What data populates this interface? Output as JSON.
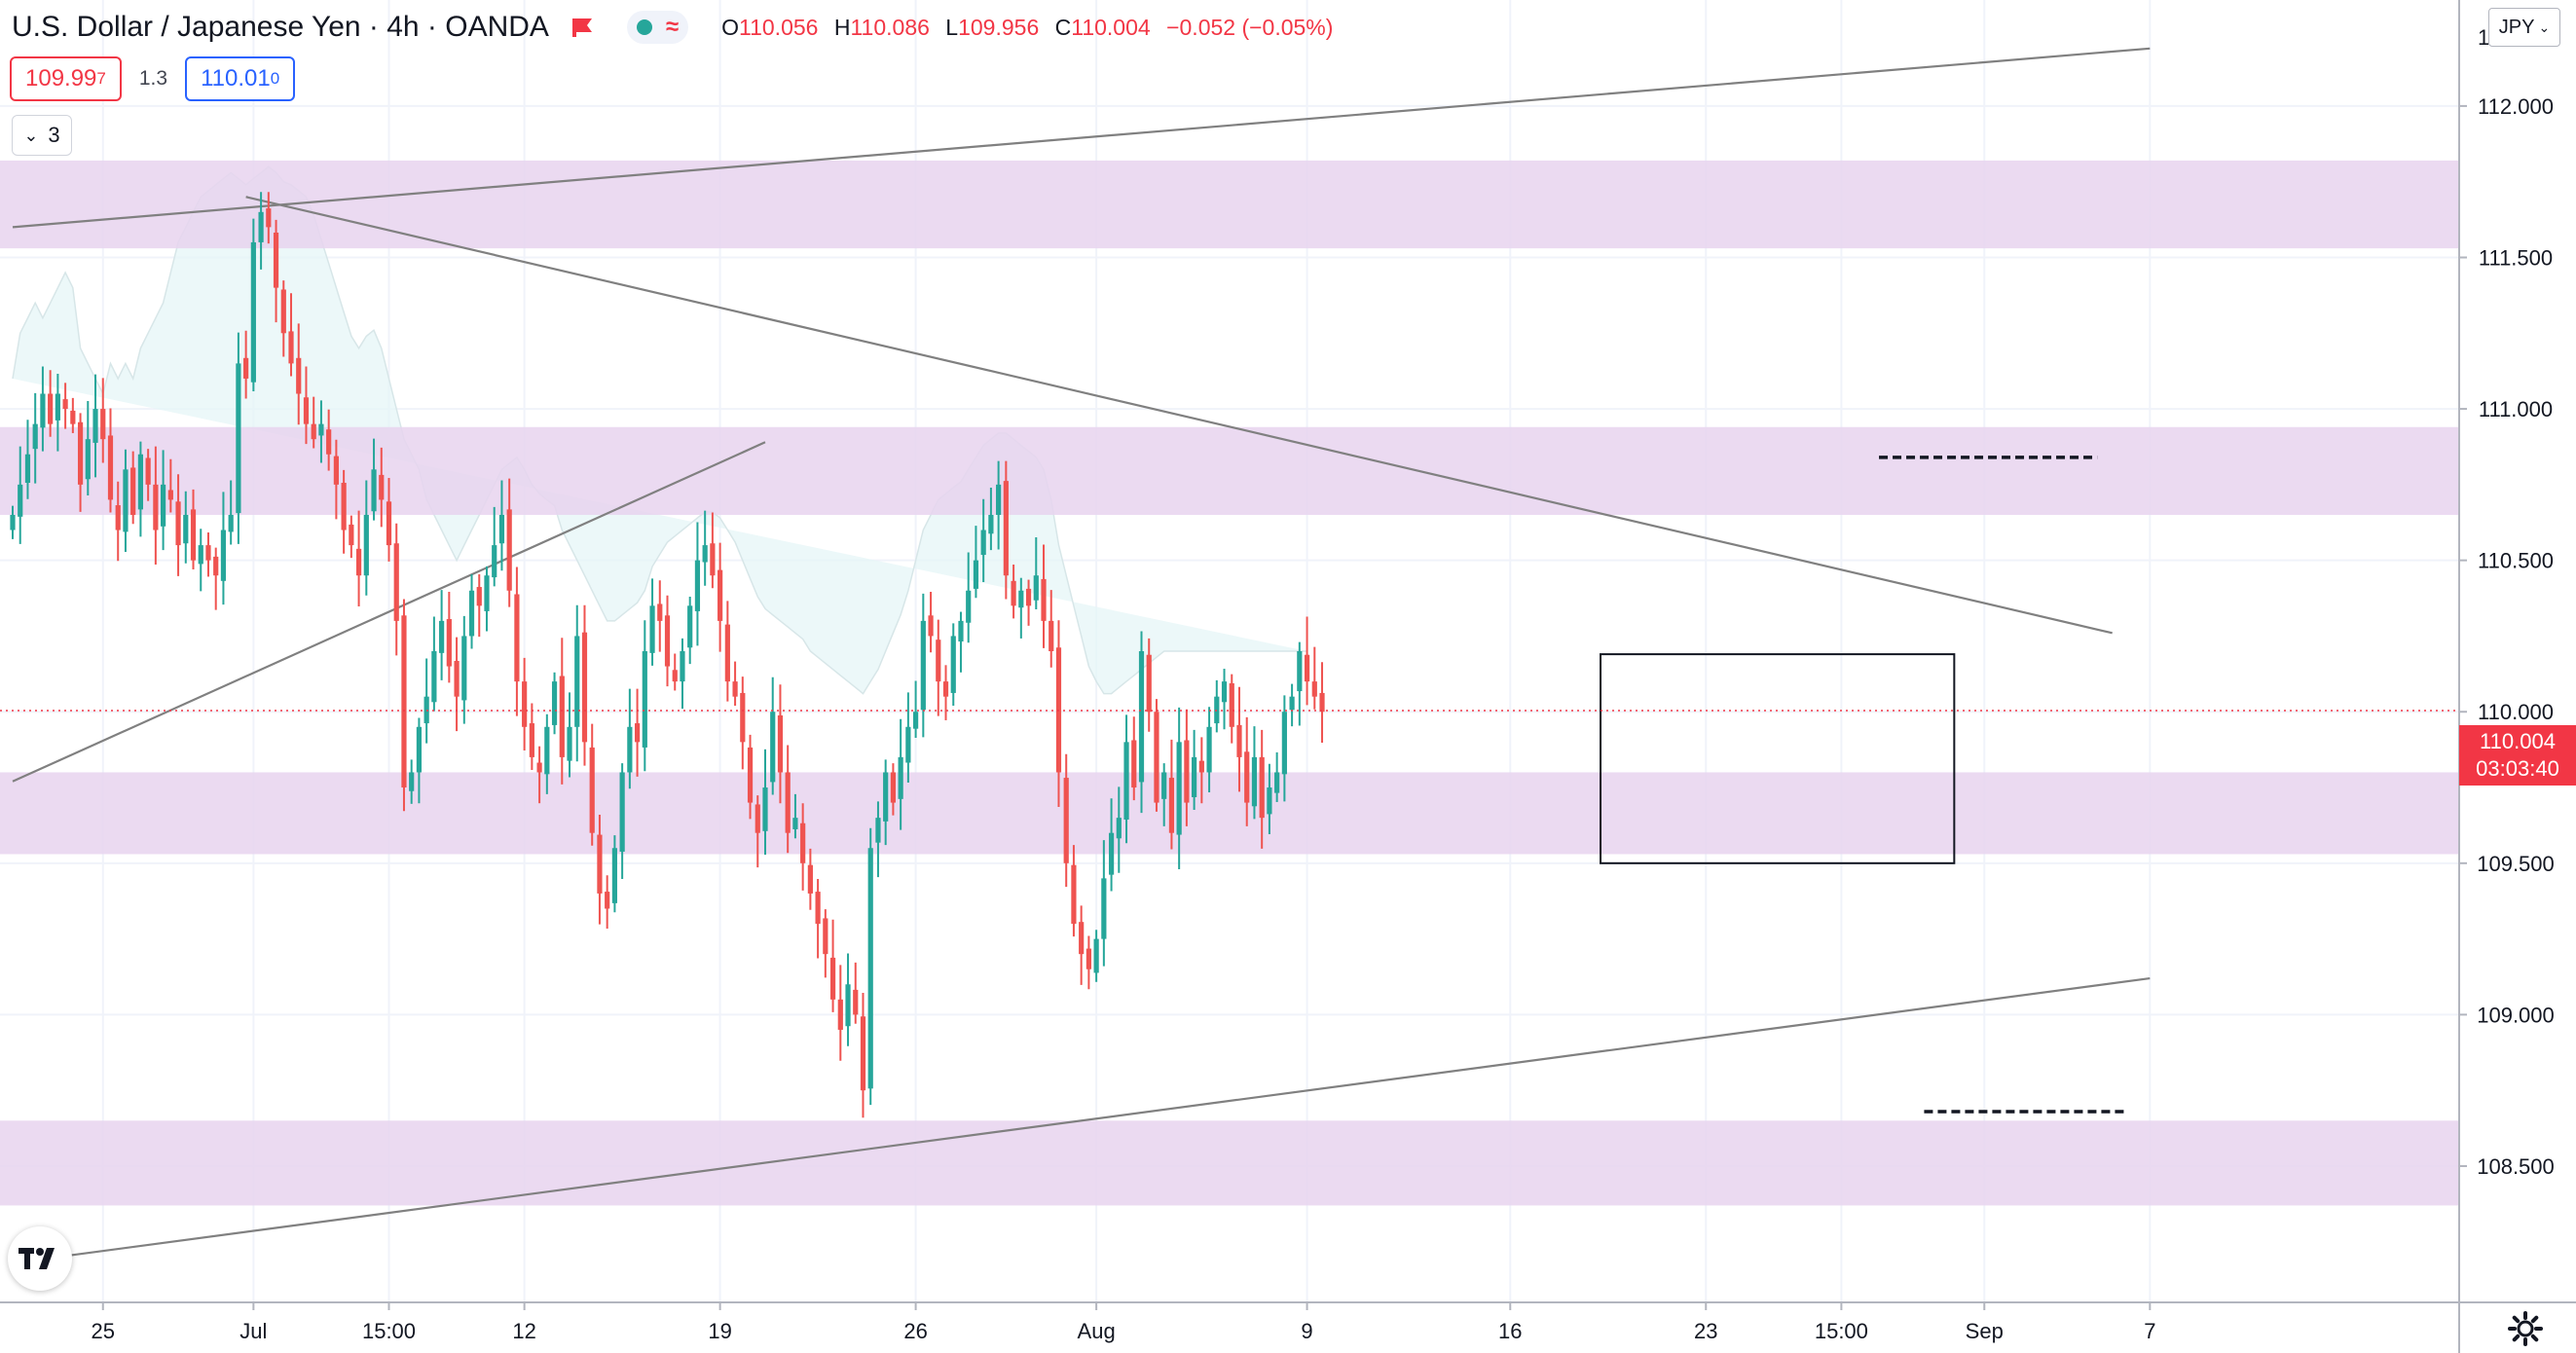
{
  "header": {
    "title": "U.S. Dollar / Japanese Yen · 4h · OANDA",
    "ohlc": {
      "o_label": "O",
      "o": "110.056",
      "h_label": "H",
      "h": "110.086",
      "l_label": "L",
      "l": "109.956",
      "c_label": "C",
      "c": "110.004",
      "change": "−0.052 (−0.05%)"
    }
  },
  "trade": {
    "sell": "109.99",
    "sell_sup": "7",
    "spread": "1.3",
    "buy": "110.01",
    "buy_sup": "0"
  },
  "indicators_toggle": {
    "count": "3"
  },
  "currency": "JPY",
  "last_price": {
    "value": "110.004",
    "countdown": "03:03:40"
  },
  "colors": {
    "up": "#26a69a",
    "down": "#ef5350",
    "zone": "#e8d4ef",
    "band": "#e6f6f7",
    "line": "#808080"
  },
  "chart_data": {
    "type": "candlestick",
    "symbol": "USDJPY",
    "timeframe": "4h",
    "ylim": [
      108.05,
      112.35
    ],
    "y_ticks": [
      112.0,
      111.5,
      111.0,
      110.5,
      110.0,
      109.5,
      109.0,
      108.5
    ],
    "y_tick_labels": [
      "112.000",
      "111.500",
      "111.000",
      "110.500",
      "110.000",
      "109.500",
      "109.000",
      "108.500"
    ],
    "x_ticks": [
      {
        "label": "25",
        "index": 12
      },
      {
        "label": "Jul",
        "index": 32
      },
      {
        "label": "15:00",
        "index": 50
      },
      {
        "label": "12",
        "index": 68
      },
      {
        "label": "19",
        "index": 94
      },
      {
        "label": "26",
        "index": 120
      },
      {
        "label": "Aug",
        "index": 144
      },
      {
        "label": "9",
        "index": 172
      },
      {
        "label": "16",
        "index": 199
      },
      {
        "label": "23",
        "index": 225
      },
      {
        "label": "15:00",
        "index": 243
      },
      {
        "label": "Sep",
        "index": 262
      },
      {
        "label": "7",
        "index": 284
      }
    ],
    "zones": [
      {
        "low": 111.53,
        "high": 111.82
      },
      {
        "low": 110.65,
        "high": 110.94
      },
      {
        "low": 109.53,
        "high": 109.8
      },
      {
        "low": 108.37,
        "high": 108.65
      }
    ],
    "trendlines": [
      {
        "i1": 0,
        "p1": 111.6,
        "i2": 284,
        "p2": 112.19
      },
      {
        "i1": 31,
        "p1": 111.7,
        "i2": 279,
        "p2": 110.26
      },
      {
        "i1": 0,
        "p1": 109.77,
        "i2": 100,
        "p2": 110.89
      },
      {
        "i1": 6,
        "p1": 108.2,
        "i2": 284,
        "p2": 109.12
      }
    ],
    "dashed_levels": [
      {
        "i1": 248,
        "i2": 277,
        "price": 110.84
      },
      {
        "i1": 254,
        "i2": 281,
        "price": 108.68
      }
    ],
    "range_box": {
      "i1": 211,
      "i2": 258,
      "high": 110.19,
      "low": 109.5
    },
    "closes": [
      110.65,
      110.75,
      110.85,
      110.95,
      111.05,
      110.95,
      111.05,
      111.0,
      110.95,
      110.75,
      110.9,
      111.0,
      110.9,
      110.7,
      110.6,
      110.8,
      110.65,
      110.85,
      110.75,
      110.6,
      110.75,
      110.7,
      110.55,
      110.65,
      110.5,
      110.55,
      110.5,
      110.45,
      110.6,
      110.65,
      111.15,
      111.1,
      111.55,
      111.65,
      111.6,
      111.4,
      111.25,
      111.15,
      111.05,
      110.95,
      110.9,
      110.95,
      110.85,
      110.75,
      110.6,
      110.55,
      110.45,
      110.65,
      110.8,
      110.7,
      110.55,
      110.3,
      109.75,
      109.8,
      109.95,
      110.05,
      110.2,
      110.3,
      110.15,
      110.05,
      110.25,
      110.4,
      110.35,
      110.45,
      110.55,
      110.65,
      110.4,
      110.1,
      109.95,
      109.85,
      109.8,
      109.95,
      110.1,
      109.85,
      109.95,
      110.25,
      109.9,
      109.6,
      109.4,
      109.35,
      109.55,
      109.8,
      109.95,
      109.9,
      110.2,
      110.35,
      110.3,
      110.15,
      110.1,
      110.2,
      110.35,
      110.5,
      110.55,
      110.45,
      110.3,
      110.1,
      110.05,
      109.9,
      109.7,
      109.6,
      109.75,
      110.0,
      109.8,
      109.6,
      109.65,
      109.5,
      109.4,
      109.3,
      109.2,
      109.05,
      108.95,
      109.1,
      109.0,
      108.75,
      109.55,
      109.65,
      109.8,
      109.7,
      109.85,
      109.95,
      110.0,
      110.3,
      110.25,
      110.1,
      110.05,
      110.25,
      110.3,
      110.4,
      110.5,
      110.6,
      110.65,
      110.75,
      110.45,
      110.35,
      110.4,
      110.35,
      110.45,
      110.3,
      110.2,
      109.8,
      109.5,
      109.3,
      109.2,
      109.15,
      109.25,
      109.45,
      109.6,
      109.65,
      109.9,
      109.75,
      110.2,
      110.0,
      109.7,
      109.8,
      109.6,
      109.9,
      109.7,
      109.85,
      109.8,
      109.95,
      110.05,
      110.1,
      109.95,
      109.85,
      109.7,
      109.85,
      109.65,
      109.75,
      109.8,
      110.0,
      110.05,
      110.2,
      110.1,
      110.05,
      110.0
    ],
    "band_upper": [
      111.1,
      111.25,
      111.3,
      111.35,
      111.3,
      111.35,
      111.4,
      111.45,
      111.4,
      111.2,
      111.15,
      111.1,
      111.05,
      111.15,
      111.1,
      111.15,
      111.1,
      111.2,
      111.25,
      111.3,
      111.35,
      111.45,
      111.55,
      111.6,
      111.65,
      111.7,
      111.72,
      111.74,
      111.76,
      111.78,
      111.76,
      111.74,
      111.76,
      111.78,
      111.8,
      111.78,
      111.75,
      111.74,
      111.72,
      111.7,
      111.64,
      111.56,
      111.48,
      111.4,
      111.32,
      111.24,
      111.2,
      111.24,
      111.26,
      111.2,
      111.1,
      111.0,
      110.9,
      110.85,
      110.8,
      110.7,
      110.65,
      110.6,
      110.55,
      110.5,
      110.55,
      110.6,
      110.65,
      110.7,
      110.75,
      110.8,
      110.82,
      110.84,
      110.8,
      110.75,
      110.72,
      110.7,
      110.68,
      110.6,
      110.55,
      110.5,
      110.45,
      110.4,
      110.35,
      110.3,
      110.3,
      110.32,
      110.34,
      110.36,
      110.4,
      110.48,
      110.52,
      110.56,
      110.58,
      110.6,
      110.62,
      110.64,
      110.66,
      110.66,
      110.64,
      110.6,
      110.56,
      110.5,
      110.44,
      110.38,
      110.34,
      110.32,
      110.3,
      110.28,
      110.26,
      110.24,
      110.2,
      110.18,
      110.16,
      110.14,
      110.12,
      110.1,
      110.08,
      110.06,
      110.1,
      110.14,
      110.2,
      110.26,
      110.32,
      110.4,
      110.5,
      110.6,
      110.65,
      110.7,
      110.72,
      110.74,
      110.76,
      110.8,
      110.84,
      110.88,
      110.9,
      110.92,
      110.92,
      110.9,
      110.88,
      110.86,
      110.84,
      110.8,
      110.7,
      110.55,
      110.45,
      110.35,
      110.25,
      110.15,
      110.1,
      110.06,
      110.06,
      110.08,
      110.1,
      110.12,
      110.14,
      110.16,
      110.18,
      110.2,
      110.2,
      110.2,
      110.2,
      110.2,
      110.2,
      110.2,
      110.2,
      110.2,
      110.2,
      110.2,
      110.2,
      110.2,
      110.2,
      110.2,
      110.2,
      110.2,
      110.2,
      110.2,
      110.2
    ],
    "band_lower": [
      110.2,
      110.25,
      110.28,
      110.3,
      110.32,
      110.34,
      110.36,
      110.38,
      110.4,
      110.42,
      110.44,
      110.46,
      110.48,
      110.5,
      110.5,
      110.5,
      110.48,
      110.46,
      110.44,
      110.4,
      110.36,
      110.3,
      110.24,
      110.18,
      110.12,
      110.06,
      110.02,
      110.04,
      110.06,
      110.1,
      110.14,
      110.18,
      110.22,
      110.26,
      110.3,
      110.34,
      110.38,
      110.42,
      110.45,
      110.48,
      110.5,
      110.52,
      110.5,
      110.45,
      110.35,
      110.2,
      110.0,
      109.85,
      109.75,
      109.65,
      109.6,
      109.58,
      109.56,
      109.55,
      109.55,
      109.56,
      109.58,
      109.6,
      109.62,
      109.64,
      109.66,
      109.68,
      109.7,
      109.72,
      109.74,
      109.72,
      109.68,
      109.62,
      109.56,
      109.5,
      109.45,
      109.42,
      109.4,
      109.38,
      109.36,
      109.35,
      109.35,
      109.36,
      109.38,
      109.4,
      109.42,
      109.44,
      109.46,
      109.48,
      109.5,
      109.52,
      109.54,
      109.56,
      109.58,
      109.6,
      109.58,
      109.55,
      109.5,
      109.45,
      109.38,
      109.3,
      109.22,
      109.14,
      109.06,
      109.0,
      108.96,
      108.92,
      108.88,
      108.86,
      108.86,
      108.88,
      108.9,
      108.92,
      108.96,
      109.0,
      109.08,
      109.18,
      109.3,
      109.4,
      109.48,
      109.54,
      109.58,
      109.62,
      109.66,
      109.7,
      109.74,
      109.78,
      109.82,
      109.84,
      109.86,
      109.88,
      109.9,
      109.9,
      109.88,
      109.84,
      109.78,
      109.7,
      109.6,
      109.48,
      109.34,
      109.2,
      109.08,
      108.98,
      108.9,
      108.86,
      108.84,
      108.86,
      108.9,
      108.98,
      109.08,
      109.2,
      109.32,
      109.42,
      109.5,
      109.56,
      109.6,
      109.62,
      109.64,
      109.66,
      109.68,
      109.7,
      109.72,
      109.74,
      109.76,
      109.78,
      109.8,
      109.82,
      109.84,
      109.86,
      109.88,
      109.9,
      109.92
    ]
  }
}
